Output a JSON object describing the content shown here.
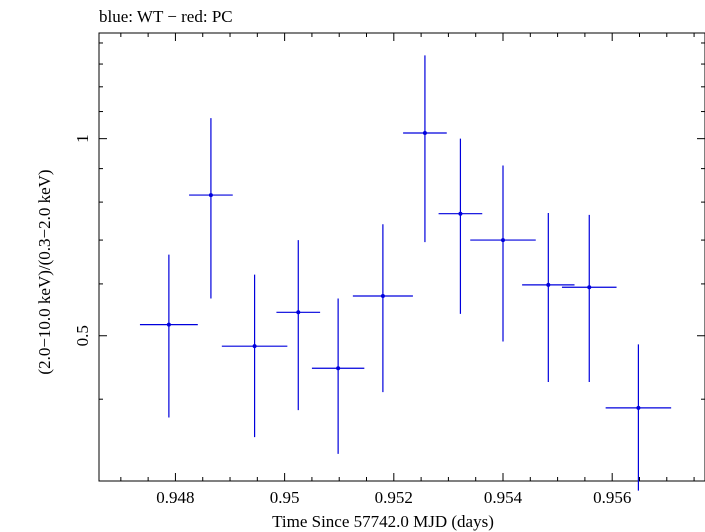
{
  "chart_data": {
    "type": "scatter",
    "title": "blue: WT − red: PC",
    "xlabel": "Time Since 57742.0 MJD (days)",
    "ylabel": "(2.0−10.0 keV)/(0.3−2.0 keV)",
    "xlim": [
      0.9466,
      0.9577
    ],
    "ylim": [
      0.3,
      1.45
    ],
    "yscale": "log",
    "x_ticks": [
      "0.948",
      "0.95",
      "0.952",
      "0.954",
      "0.956"
    ],
    "x_tick_values": [
      0.948,
      0.95,
      0.952,
      0.954,
      0.956
    ],
    "y_ticks": [
      "0.5",
      "1"
    ],
    "y_tick_values": [
      0.5,
      1
    ],
    "grid": false,
    "series": [
      {
        "color": "#0000dd",
        "points": [
          {
            "x": 0.94788,
            "xerr": 0.00053,
            "y": 0.52,
            "ylo": 0.375,
            "yhi": 0.665
          },
          {
            "x": 0.94865,
            "xerr": 0.0004,
            "y": 0.82,
            "ylo": 0.57,
            "yhi": 1.075
          },
          {
            "x": 0.94945,
            "xerr": 0.0006,
            "y": 0.482,
            "ylo": 0.35,
            "yhi": 0.62
          },
          {
            "x": 0.95025,
            "xerr": 0.0004,
            "y": 0.543,
            "ylo": 0.385,
            "yhi": 0.7
          },
          {
            "x": 0.95098,
            "xerr": 0.00048,
            "y": 0.446,
            "ylo": 0.33,
            "yhi": 0.57
          },
          {
            "x": 0.9518,
            "xerr": 0.00055,
            "y": 0.575,
            "ylo": 0.41,
            "yhi": 0.74
          },
          {
            "x": 0.95257,
            "xerr": 0.0004,
            "y": 1.02,
            "ylo": 0.695,
            "yhi": 1.34
          },
          {
            "x": 0.95322,
            "xerr": 0.0004,
            "y": 0.768,
            "ylo": 0.54,
            "yhi": 1.0
          },
          {
            "x": 0.954,
            "xerr": 0.0006,
            "y": 0.7,
            "ylo": 0.49,
            "yhi": 0.91
          },
          {
            "x": 0.95483,
            "xerr": 0.00048,
            "y": 0.598,
            "ylo": 0.425,
            "yhi": 0.77
          },
          {
            "x": 0.95558,
            "xerr": 0.0005,
            "y": 0.593,
            "ylo": 0.425,
            "yhi": 0.765
          },
          {
            "x": 0.95648,
            "xerr": 0.0006,
            "y": 0.388,
            "ylo": 0.29,
            "yhi": 0.485
          }
        ]
      }
    ]
  }
}
